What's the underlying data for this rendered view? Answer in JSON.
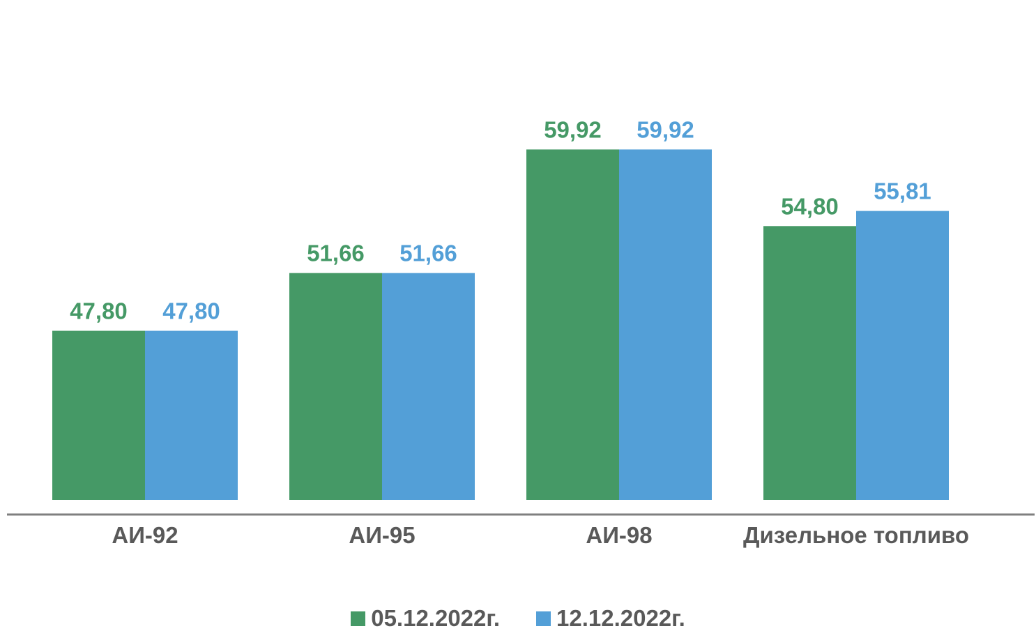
{
  "chart_data": {
    "type": "bar",
    "title": "",
    "xlabel": "",
    "ylabel": "",
    "categories": [
      "АИ-92",
      "АИ-95",
      "АИ-98",
      "Дизельное топливо"
    ],
    "series": [
      {
        "name": "05.12.2022г.",
        "color": "#459966",
        "values": [
          47.8,
          51.66,
          59.92,
          54.8
        ],
        "labels": [
          "47,80",
          "51,66",
          "59,92",
          "54,80"
        ]
      },
      {
        "name": "12.12.2022г.",
        "color": "#539fd7",
        "values": [
          47.8,
          51.66,
          59.92,
          55.81
        ],
        "labels": [
          "47,80",
          "51,66",
          "59,92",
          "55,81"
        ]
      }
    ],
    "ylim": [
      36.5,
      62.5
    ],
    "grid": false,
    "legend_position": "bottom",
    "axis_color": "#7f7f7f",
    "category_label_color": "#595959"
  }
}
